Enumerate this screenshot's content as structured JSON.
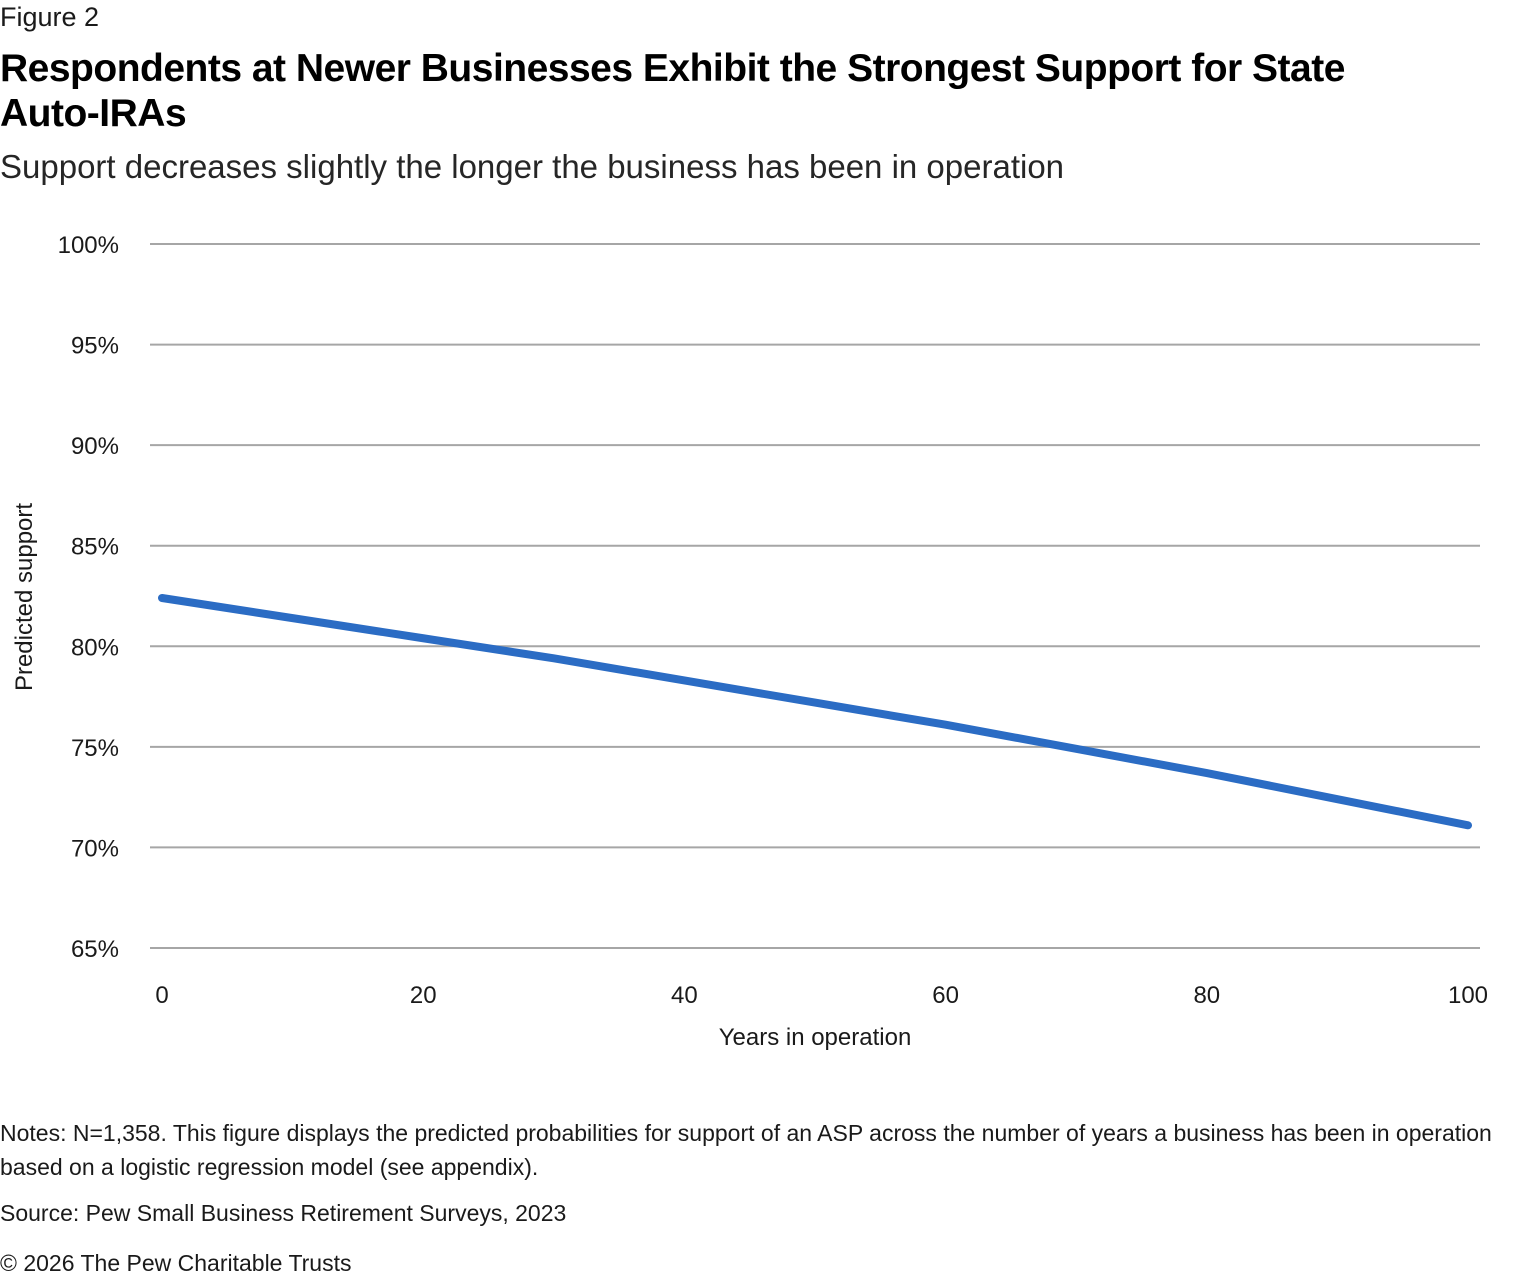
{
  "figure_label": "Figure 2",
  "title": "Respondents at Newer Businesses Exhibit the Strongest Support for State Auto-IRAs",
  "subtitle": "Support decreases slightly the longer the business has been in operation",
  "notes": "Notes: N=1,358. This figure displays the predicted probabilities for support of an ASP across the number of years a business has been in operation based on a logistic regression model (see appendix).",
  "source": "Source: Pew Small Business Retirement Surveys, 2023",
  "copyright": "© 2026 The Pew Charitable Trusts",
  "chart_data": {
    "type": "line",
    "title": "Respondents at Newer Businesses Exhibit the Strongest Support for State Auto-IRAs",
    "subtitle": "Support decreases slightly the longer the business has been in operation",
    "xlabel": "Years in operation",
    "ylabel": "Predicted support",
    "xlim": [
      0,
      100
    ],
    "ylim": [
      65,
      100
    ],
    "x_ticks": [
      0,
      20,
      40,
      60,
      80,
      100
    ],
    "x_tick_labels": [
      "0",
      "20",
      "40",
      "60",
      "80",
      "100"
    ],
    "y_ticks": [
      65,
      70,
      75,
      80,
      85,
      90,
      95,
      100
    ],
    "y_tick_labels": [
      "65%",
      "70%",
      "75%",
      "80%",
      "85%",
      "90%",
      "95%",
      "100%"
    ],
    "grid": "horizontal",
    "legend": "none",
    "series": [
      {
        "name": "Predicted support",
        "color": "#2b6cc4",
        "x": [
          0,
          10,
          20,
          30,
          40,
          50,
          60,
          70,
          80,
          90,
          100
        ],
        "y": [
          82.4,
          81.4,
          80.4,
          79.4,
          78.3,
          77.2,
          76.1,
          74.9,
          73.7,
          72.4,
          71.1
        ]
      }
    ]
  }
}
